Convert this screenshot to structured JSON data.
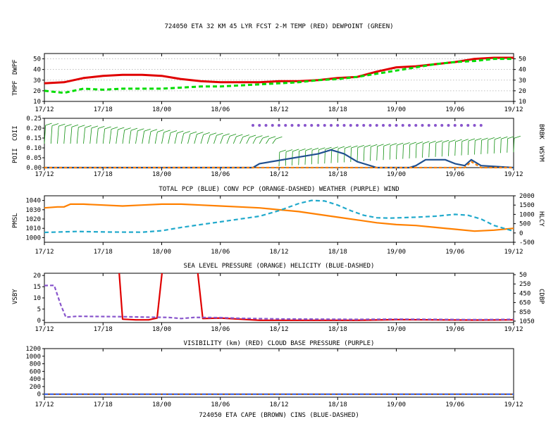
{
  "page": {
    "title": "724050 ETA 32 KM 45 LYR FCST 2-M TEMP (RED) DEWPOINT (GREEN)"
  },
  "colors": {
    "red": "#e00000",
    "green": "#00dd00",
    "blue": "#1f4f8f",
    "orange": "#ff8000",
    "purple": "#8855cc",
    "cyan": "#22aacc",
    "wind": "#109010",
    "brown": "#8b4513",
    "cins_blue": "#3366ff"
  },
  "time_ticks": [
    "17/12",
    "17/18",
    "18/00",
    "18/06",
    "18/12",
    "18/18",
    "19/00",
    "19/06",
    "19/12"
  ],
  "chart_data": [
    {
      "type": "line",
      "name": "temperature-dewpoint",
      "title": "724050 ETA 32 KM 45 LYR FCST 2-M TEMP (RED) DEWPOINT (GREEN)",
      "left_label_parts": [
        "TMPF",
        "DWPF"
      ],
      "x_hours": [
        0,
        3,
        6,
        9,
        12,
        15,
        18,
        21,
        24,
        27,
        30,
        33,
        36,
        39,
        42,
        45,
        48,
        51,
        54,
        57,
        60,
        63,
        66,
        69,
        72
      ],
      "ylim": [
        10,
        55
      ],
      "yticks": [
        10,
        20,
        30,
        40,
        50
      ],
      "series": [
        {
          "name": "TMPF",
          "color": "red",
          "values": [
            27,
            28,
            32,
            34,
            35,
            35,
            34,
            31,
            29,
            28,
            28,
            28,
            29,
            29,
            30,
            32,
            33,
            38,
            42,
            43,
            45,
            47,
            50,
            51,
            51
          ]
        },
        {
          "name": "DWPF",
          "color": "green",
          "dashed": true,
          "values": [
            20,
            18,
            22,
            21,
            22,
            22,
            22,
            23,
            24,
            24,
            25,
            26,
            27,
            28,
            30,
            31,
            33,
            36,
            39,
            42,
            45,
            47,
            48,
            50,
            50
          ]
        }
      ]
    },
    {
      "type": "line",
      "name": "precip-weather-wind",
      "title": "TOTAL PCP (BLUE) CONV PCP (ORANGE-DASHED) WEATHER (PURPLE) WIND",
      "left_label_parts": [
        "POII",
        "COII"
      ],
      "right_label_parts": [
        "BRBK",
        "WSYM"
      ],
      "ylim": [
        0,
        0.25
      ],
      "yticks": [
        0,
        0.05,
        0.1,
        0.15,
        0.2,
        0.25
      ],
      "ytick_labels": [
        "0.00",
        "0.05",
        "0.10",
        "0.15",
        "0.20",
        "0.25"
      ],
      "series": [
        {
          "name": "TOTAL PCP",
          "color": "blue",
          "points": [
            [
              0,
              0
            ],
            [
              32,
              0
            ],
            [
              33,
              0.02
            ],
            [
              42,
              0.07
            ],
            [
              44,
              0.09
            ],
            [
              46,
              0.07
            ],
            [
              48,
              0.03
            ],
            [
              51,
              0
            ],
            [
              56,
              0
            ],
            [
              57,
              0.01
            ],
            [
              58.5,
              0.04
            ],
            [
              61.5,
              0.04
            ],
            [
              63,
              0.02
            ],
            [
              64.5,
              0.01
            ],
            [
              65.5,
              0.04
            ],
            [
              67,
              0.01
            ],
            [
              72,
              0
            ]
          ]
        },
        {
          "name": "CONV PCP",
          "color": "orange",
          "dashed": true,
          "points": [
            [
              0,
              0
            ],
            [
              64.5,
              0
            ],
            [
              65.5,
              0.03
            ],
            [
              67,
              0
            ],
            [
              72,
              0
            ]
          ]
        }
      ],
      "weather_symbol_hours": [
        32,
        33,
        34,
        35,
        36,
        37,
        38,
        39,
        40,
        41,
        42,
        43,
        44,
        45,
        46,
        47,
        48,
        49,
        50,
        51,
        52,
        53,
        54,
        55,
        56,
        57,
        58,
        59,
        60,
        61,
        62,
        63,
        64,
        65,
        66,
        67
      ],
      "wind_barb_hours": [
        0,
        1,
        2,
        3,
        4,
        5,
        6,
        7,
        8,
        9,
        10,
        11,
        12,
        13,
        14,
        15,
        16,
        17,
        18,
        19,
        20,
        21,
        22,
        23,
        24,
        25,
        26,
        27,
        28,
        29,
        30,
        31,
        32,
        33,
        34,
        35,
        36,
        37,
        38,
        39,
        40,
        41,
        42,
        43,
        44,
        45,
        46,
        47,
        48,
        49,
        50,
        51,
        52,
        53,
        54,
        55,
        56,
        57,
        58,
        59,
        60,
        61,
        62,
        63,
        64,
        65,
        66,
        67,
        68,
        69,
        70,
        71,
        72
      ]
    },
    {
      "type": "line",
      "name": "pressure-helicity",
      "title": "SEA LEVEL PRESSURE (ORANGE) HELICITY (BLUE-DASHED)",
      "left_label": "PMSL",
      "right_label": "HLCY",
      "ylim_left": [
        995,
        1045
      ],
      "yticks_left": [
        1000,
        1010,
        1020,
        1030,
        1040
      ],
      "ylim_right": [
        -500,
        2000
      ],
      "yticks_right": [
        -500,
        0,
        500,
        1000,
        1500,
        2000
      ],
      "series": [
        {
          "name": "PMSL",
          "color": "orange",
          "axis": "left",
          "points": [
            [
              0,
              1032
            ],
            [
              2,
              1033
            ],
            [
              3,
              1033
            ],
            [
              4,
              1036
            ],
            [
              6,
              1036
            ],
            [
              9,
              1035
            ],
            [
              12,
              1034
            ],
            [
              15,
              1035
            ],
            [
              18,
              1036
            ],
            [
              21,
              1036
            ],
            [
              24,
              1035
            ],
            [
              27,
              1034
            ],
            [
              30,
              1033
            ],
            [
              33,
              1032
            ],
            [
              36,
              1030
            ],
            [
              39,
              1028
            ],
            [
              42,
              1025
            ],
            [
              45,
              1022
            ],
            [
              48,
              1019
            ],
            [
              51,
              1016
            ],
            [
              54,
              1014
            ],
            [
              57,
              1013
            ],
            [
              60,
              1011
            ],
            [
              63,
              1009
            ],
            [
              66,
              1007
            ],
            [
              69,
              1008
            ],
            [
              72,
              1010
            ]
          ]
        },
        {
          "name": "HLCY",
          "color": "cyan",
          "dashed": true,
          "axis": "right",
          "points": [
            [
              0,
              30
            ],
            [
              5,
              80
            ],
            [
              10,
              50
            ],
            [
              15,
              40
            ],
            [
              18,
              120
            ],
            [
              21,
              300
            ],
            [
              24,
              450
            ],
            [
              27,
              600
            ],
            [
              30,
              750
            ],
            [
              33,
              900
            ],
            [
              36,
              1200
            ],
            [
              39,
              1580
            ],
            [
              41,
              1750
            ],
            [
              43,
              1720
            ],
            [
              45,
              1500
            ],
            [
              47,
              1200
            ],
            [
              49,
              950
            ],
            [
              51,
              820
            ],
            [
              53,
              800
            ],
            [
              57,
              850
            ],
            [
              60,
              900
            ],
            [
              63,
              1000
            ],
            [
              65,
              950
            ],
            [
              67,
              750
            ],
            [
              69,
              400
            ],
            [
              72,
              100
            ]
          ]
        }
      ]
    },
    {
      "type": "line",
      "name": "visibility-cloudbase",
      "title": "VISIBILITY (km) (RED)    CLOUD BASE PRESSURE (PURPLE)",
      "left_label": "VSBY",
      "right_label": "CDBP",
      "ylim_left": [
        -1,
        21
      ],
      "yticks_left": [
        0,
        5,
        10,
        15,
        20
      ],
      "yticks_right": [
        50,
        250,
        450,
        650,
        850,
        1050
      ],
      "series": [
        {
          "name": "VSBY",
          "color": "red",
          "clip_top": true,
          "points": [
            [
              11,
              40
            ],
            [
              12,
              0.5
            ],
            [
              14,
              0.2
            ],
            [
              16,
              0.2
            ],
            [
              17.3,
              1
            ],
            [
              18.2,
              25
            ],
            [
              23.4,
              25
            ],
            [
              24.3,
              0.8
            ],
            [
              27,
              1
            ],
            [
              30,
              0.5
            ],
            [
              33,
              0
            ],
            [
              42,
              0
            ],
            [
              48,
              0
            ],
            [
              54,
              0.3
            ],
            [
              60,
              0.2
            ],
            [
              66,
              0.1
            ],
            [
              72,
              0.2
            ]
          ]
        },
        {
          "name": "CDBP",
          "color": "purple",
          "dashed": true,
          "points": [
            [
              0,
              15.5
            ],
            [
              1.5,
              15.6
            ],
            [
              2.5,
              7
            ],
            [
              3.3,
              1.4
            ],
            [
              5,
              1.8
            ],
            [
              8,
              1.7
            ],
            [
              12,
              1.6
            ],
            [
              16,
              1.4
            ],
            [
              19,
              1.3
            ],
            [
              21,
              0.8
            ],
            [
              23,
              1.3
            ],
            [
              27,
              1.2
            ],
            [
              30,
              0.9
            ],
            [
              36,
              0.6
            ],
            [
              48,
              0.4
            ],
            [
              54,
              0.5
            ],
            [
              60,
              0.4
            ],
            [
              66,
              0.3
            ],
            [
              72,
              0.4
            ]
          ]
        }
      ]
    },
    {
      "type": "line",
      "name": "cape-cins",
      "title": "VISIBILITY (km) (RED)    CLOUD BASE PRESSURE (PURPLE)",
      "bottom_caption": "724050 ETA CAPE (BROWN) CINS (BLUE-DASHED)",
      "ylim": [
        -80,
        1200
      ],
      "yticks": [
        0,
        200,
        400,
        600,
        800,
        1000,
        1200
      ],
      "series": [
        {
          "name": "CAPE",
          "color": "brown",
          "points": [
            [
              0,
              0
            ],
            [
              72,
              0
            ]
          ]
        },
        {
          "name": "CINS",
          "color": "cins_blue",
          "dashed": true,
          "points": [
            [
              0,
              0
            ],
            [
              72,
              0
            ]
          ]
        }
      ]
    }
  ]
}
